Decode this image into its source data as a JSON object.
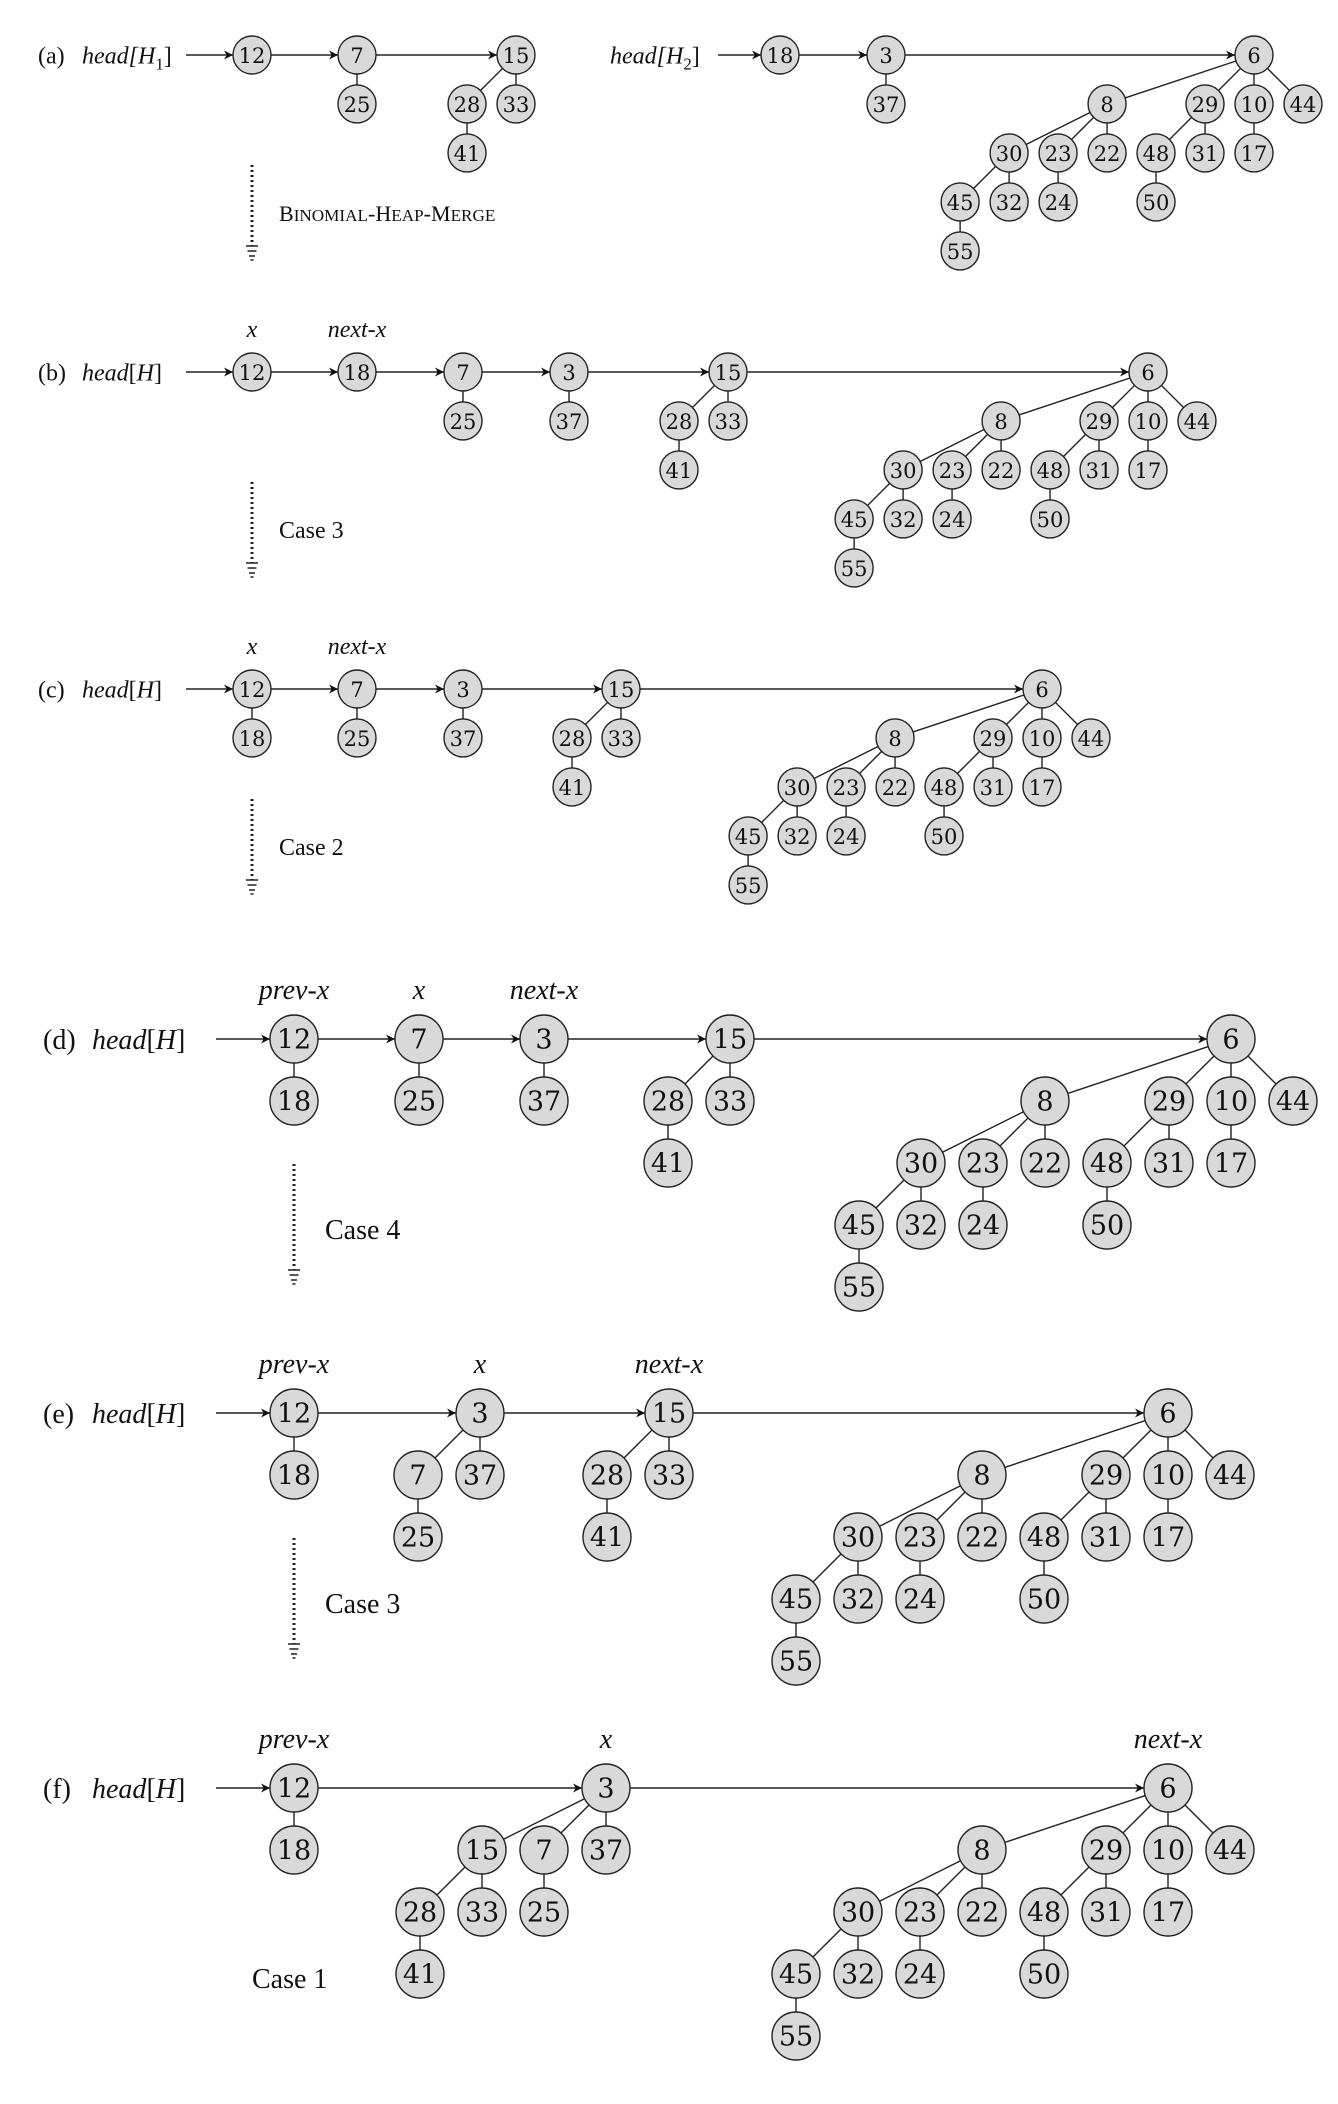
{
  "panels": [
    {
      "id": "a",
      "label": "(a)",
      "heads": [
        {
          "text": "head[H",
          "sub": "1",
          "close": "]"
        },
        {
          "text": "head[H",
          "sub": "2",
          "close": "]"
        }
      ],
      "pointers": [],
      "step": "Binomial-Heap-Merge",
      "roots": [
        {
          "key": "12",
          "children": []
        },
        {
          "key": "7",
          "children": [
            {
              "key": "25",
              "children": []
            }
          ]
        },
        {
          "key": "15",
          "children": [
            {
              "key": "28",
              "children": [
                {
                  "key": "41",
                  "children": []
                }
              ]
            },
            {
              "key": "33",
              "children": []
            }
          ]
        },
        {
          "key": "18",
          "children": []
        },
        {
          "key": "3",
          "children": [
            {
              "key": "37",
              "children": []
            }
          ]
        },
        {
          "key": "6",
          "children": [
            {
              "key": "8",
              "children": [
                {
                  "key": "30",
                  "children": [
                    {
                      "key": "45",
                      "children": [
                        {
                          "key": "55",
                          "children": []
                        }
                      ]
                    },
                    {
                      "key": "32",
                      "children": []
                    }
                  ]
                },
                {
                  "key": "23",
                  "children": [
                    {
                      "key": "24",
                      "children": []
                    }
                  ]
                },
                {
                  "key": "22",
                  "children": []
                }
              ]
            },
            {
              "key": "29",
              "children": [
                {
                  "key": "48",
                  "children": [
                    {
                      "key": "50",
                      "children": []
                    }
                  ]
                },
                {
                  "key": "31",
                  "children": []
                }
              ]
            },
            {
              "key": "10",
              "children": [
                {
                  "key": "17",
                  "children": []
                }
              ]
            },
            {
              "key": "44",
              "children": []
            }
          ]
        }
      ]
    },
    {
      "id": "b",
      "label": "(b)",
      "heads": [
        {
          "text": "head[H]"
        }
      ],
      "pointers": [
        {
          "text": "x",
          "root": 0
        },
        {
          "text": "next-x",
          "root": 1
        }
      ],
      "step": "Case 3",
      "roots": [
        {
          "key": "12",
          "children": []
        },
        {
          "key": "18",
          "children": []
        },
        {
          "key": "7",
          "children": [
            {
              "key": "25",
              "children": []
            }
          ]
        },
        {
          "key": "3",
          "children": [
            {
              "key": "37",
              "children": []
            }
          ]
        },
        {
          "key": "15",
          "children": [
            {
              "key": "28",
              "children": [
                {
                  "key": "41",
                  "children": []
                }
              ]
            },
            {
              "key": "33",
              "children": []
            }
          ]
        },
        {
          "key": "6",
          "children": [
            {
              "key": "8",
              "children": [
                {
                  "key": "30",
                  "children": [
                    {
                      "key": "45",
                      "children": [
                        {
                          "key": "55",
                          "children": []
                        }
                      ]
                    },
                    {
                      "key": "32",
                      "children": []
                    }
                  ]
                },
                {
                  "key": "23",
                  "children": [
                    {
                      "key": "24",
                      "children": []
                    }
                  ]
                },
                {
                  "key": "22",
                  "children": []
                }
              ]
            },
            {
              "key": "29",
              "children": [
                {
                  "key": "48",
                  "children": [
                    {
                      "key": "50",
                      "children": []
                    }
                  ]
                },
                {
                  "key": "31",
                  "children": []
                }
              ]
            },
            {
              "key": "10",
              "children": [
                {
                  "key": "17",
                  "children": []
                }
              ]
            },
            {
              "key": "44",
              "children": []
            }
          ]
        }
      ]
    },
    {
      "id": "c",
      "label": "(c)",
      "heads": [
        {
          "text": "head[H]"
        }
      ],
      "pointers": [
        {
          "text": "x",
          "root": 0
        },
        {
          "text": "next-x",
          "root": 1
        }
      ],
      "step": "Case 2",
      "roots": [
        {
          "key": "12",
          "children": [
            {
              "key": "18",
              "children": []
            }
          ]
        },
        {
          "key": "7",
          "children": [
            {
              "key": "25",
              "children": []
            }
          ]
        },
        {
          "key": "3",
          "children": [
            {
              "key": "37",
              "children": []
            }
          ]
        },
        {
          "key": "15",
          "children": [
            {
              "key": "28",
              "children": [
                {
                  "key": "41",
                  "children": []
                }
              ]
            },
            {
              "key": "33",
              "children": []
            }
          ]
        },
        {
          "key": "6",
          "children": [
            {
              "key": "8",
              "children": [
                {
                  "key": "30",
                  "children": [
                    {
                      "key": "45",
                      "children": [
                        {
                          "key": "55",
                          "children": []
                        }
                      ]
                    },
                    {
                      "key": "32",
                      "children": []
                    }
                  ]
                },
                {
                  "key": "23",
                  "children": [
                    {
                      "key": "24",
                      "children": []
                    }
                  ]
                },
                {
                  "key": "22",
                  "children": []
                }
              ]
            },
            {
              "key": "29",
              "children": [
                {
                  "key": "48",
                  "children": [
                    {
                      "key": "50",
                      "children": []
                    }
                  ]
                },
                {
                  "key": "31",
                  "children": []
                }
              ]
            },
            {
              "key": "10",
              "children": [
                {
                  "key": "17",
                  "children": []
                }
              ]
            },
            {
              "key": "44",
              "children": []
            }
          ]
        }
      ]
    },
    {
      "id": "d",
      "label": "(d)",
      "heads": [
        {
          "text": "head[H]"
        }
      ],
      "pointers": [
        {
          "text": "prev-x",
          "root": 0
        },
        {
          "text": "x",
          "root": 1
        },
        {
          "text": "next-x",
          "root": 2
        }
      ],
      "step": "Case 4",
      "roots": [
        {
          "key": "12",
          "children": [
            {
              "key": "18",
              "children": []
            }
          ]
        },
        {
          "key": "7",
          "children": [
            {
              "key": "25",
              "children": []
            }
          ]
        },
        {
          "key": "3",
          "children": [
            {
              "key": "37",
              "children": []
            }
          ]
        },
        {
          "key": "15",
          "children": [
            {
              "key": "28",
              "children": [
                {
                  "key": "41",
                  "children": []
                }
              ]
            },
            {
              "key": "33",
              "children": []
            }
          ]
        },
        {
          "key": "6",
          "children": [
            {
              "key": "8",
              "children": [
                {
                  "key": "30",
                  "children": [
                    {
                      "key": "45",
                      "children": [
                        {
                          "key": "55",
                          "children": []
                        }
                      ]
                    },
                    {
                      "key": "32",
                      "children": []
                    }
                  ]
                },
                {
                  "key": "23",
                  "children": [
                    {
                      "key": "24",
                      "children": []
                    }
                  ]
                },
                {
                  "key": "22",
                  "children": []
                }
              ]
            },
            {
              "key": "29",
              "children": [
                {
                  "key": "48",
                  "children": [
                    {
                      "key": "50",
                      "children": []
                    }
                  ]
                },
                {
                  "key": "31",
                  "children": []
                }
              ]
            },
            {
              "key": "10",
              "children": [
                {
                  "key": "17",
                  "children": []
                }
              ]
            },
            {
              "key": "44",
              "children": []
            }
          ]
        }
      ]
    },
    {
      "id": "e",
      "label": "(e)",
      "heads": [
        {
          "text": "head[H]"
        }
      ],
      "pointers": [
        {
          "text": "prev-x",
          "root": 0
        },
        {
          "text": "x",
          "root": 1
        },
        {
          "text": "next-x",
          "root": 2
        }
      ],
      "step": "Case 3",
      "roots": [
        {
          "key": "12",
          "children": [
            {
              "key": "18",
              "children": []
            }
          ]
        },
        {
          "key": "3",
          "children": [
            {
              "key": "7",
              "children": [
                {
                  "key": "25",
                  "children": []
                }
              ]
            },
            {
              "key": "37",
              "children": []
            }
          ]
        },
        {
          "key": "15",
          "children": [
            {
              "key": "28",
              "children": [
                {
                  "key": "41",
                  "children": []
                }
              ]
            },
            {
              "key": "33",
              "children": []
            }
          ]
        },
        {
          "key": "6",
          "children": [
            {
              "key": "8",
              "children": [
                {
                  "key": "30",
                  "children": [
                    {
                      "key": "45",
                      "children": [
                        {
                          "key": "55",
                          "children": []
                        }
                      ]
                    },
                    {
                      "key": "32",
                      "children": []
                    }
                  ]
                },
                {
                  "key": "23",
                  "children": [
                    {
                      "key": "24",
                      "children": []
                    }
                  ]
                },
                {
                  "key": "22",
                  "children": []
                }
              ]
            },
            {
              "key": "29",
              "children": [
                {
                  "key": "48",
                  "children": [
                    {
                      "key": "50",
                      "children": []
                    }
                  ]
                },
                {
                  "key": "31",
                  "children": []
                }
              ]
            },
            {
              "key": "10",
              "children": [
                {
                  "key": "17",
                  "children": []
                }
              ]
            },
            {
              "key": "44",
              "children": []
            }
          ]
        }
      ]
    },
    {
      "id": "f",
      "label": "(f)",
      "heads": [
        {
          "text": "head[H]"
        }
      ],
      "pointers": [
        {
          "text": "prev-x",
          "root": 0
        },
        {
          "text": "x",
          "root": 1
        },
        {
          "text": "next-x",
          "root": 2
        }
      ],
      "step": "Case 1",
      "roots": [
        {
          "key": "12",
          "children": [
            {
              "key": "18",
              "children": []
            }
          ]
        },
        {
          "key": "3",
          "children": [
            {
              "key": "15",
              "children": [
                {
                  "key": "28",
                  "children": [
                    {
                      "key": "41",
                      "children": []
                    }
                  ]
                },
                {
                  "key": "33",
                  "children": []
                }
              ]
            },
            {
              "key": "7",
              "children": [
                {
                  "key": "25",
                  "children": []
                }
              ]
            },
            {
              "key": "37",
              "children": []
            }
          ]
        },
        {
          "key": "6",
          "children": [
            {
              "key": "8",
              "children": [
                {
                  "key": "30",
                  "children": [
                    {
                      "key": "45",
                      "children": [
                        {
                          "key": "55",
                          "children": []
                        }
                      ]
                    },
                    {
                      "key": "32",
                      "children": []
                    }
                  ]
                },
                {
                  "key": "23",
                  "children": [
                    {
                      "key": "24",
                      "children": []
                    }
                  ]
                },
                {
                  "key": "22",
                  "children": []
                }
              ]
            },
            {
              "key": "29",
              "children": [
                {
                  "key": "48",
                  "children": [
                    {
                      "key": "50",
                      "children": []
                    }
                  ]
                },
                {
                  "key": "31",
                  "children": []
                }
              ]
            },
            {
              "key": "10",
              "children": [
                {
                  "key": "17",
                  "children": []
                }
              ]
            },
            {
              "key": "44",
              "children": []
            }
          ]
        }
      ]
    }
  ]
}
